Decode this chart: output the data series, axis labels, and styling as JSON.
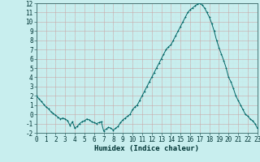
{
  "title": "",
  "xlabel": "Humidex (Indice chaleur)",
  "ylabel": "",
  "xlim": [
    0,
    23
  ],
  "ylim": [
    -2,
    12
  ],
  "xticks": [
    0,
    1,
    2,
    3,
    4,
    5,
    6,
    7,
    8,
    9,
    10,
    11,
    12,
    13,
    14,
    15,
    16,
    17,
    18,
    19,
    20,
    21,
    22,
    23
  ],
  "yticks": [
    -2,
    -1,
    0,
    1,
    2,
    3,
    4,
    5,
    6,
    7,
    8,
    9,
    10,
    11,
    12
  ],
  "bg_color": "#c8eeee",
  "grid_color_major": "#b0d8d8",
  "grid_color_minor": "#c0e8e8",
  "line_color": "#006666",
  "marker_color": "#006666",
  "x": [
    0,
    0.25,
    0.5,
    0.75,
    1.0,
    1.25,
    1.5,
    1.75,
    2.0,
    2.25,
    2.5,
    2.75,
    3.0,
    3.25,
    3.5,
    3.75,
    4.0,
    4.25,
    4.5,
    4.75,
    5.0,
    5.25,
    5.5,
    5.75,
    6.0,
    6.25,
    6.5,
    6.75,
    7.0,
    7.25,
    7.5,
    7.75,
    8.0,
    8.25,
    8.5,
    8.75,
    9.0,
    9.25,
    9.5,
    9.75,
    10.0,
    10.25,
    10.5,
    10.75,
    11.0,
    11.25,
    11.5,
    11.75,
    12.0,
    12.25,
    12.5,
    12.75,
    13.0,
    13.25,
    13.5,
    13.75,
    14.0,
    14.25,
    14.5,
    14.75,
    15.0,
    15.25,
    15.5,
    15.75,
    16.0,
    16.25,
    16.5,
    16.75,
    17.0,
    17.25,
    17.5,
    17.75,
    18.0,
    18.25,
    18.5,
    18.75,
    19.0,
    19.25,
    19.5,
    19.75,
    20.0,
    20.25,
    20.5,
    20.75,
    21.0,
    21.25,
    21.5,
    21.75,
    22.0,
    22.25,
    22.5,
    22.75,
    23.0
  ],
  "y": [
    2.0,
    1.7,
    1.4,
    1.1,
    0.8,
    0.6,
    0.3,
    0.1,
    -0.1,
    -0.3,
    -0.5,
    -0.4,
    -0.5,
    -0.7,
    -1.2,
    -0.8,
    -1.5,
    -1.3,
    -1.0,
    -0.8,
    -0.7,
    -0.5,
    -0.6,
    -0.8,
    -0.9,
    -1.0,
    -0.9,
    -0.8,
    -1.8,
    -1.6,
    -1.4,
    -1.5,
    -1.7,
    -1.5,
    -1.3,
    -0.9,
    -0.6,
    -0.4,
    -0.2,
    0.0,
    0.5,
    0.8,
    1.0,
    1.5,
    2.0,
    2.5,
    3.0,
    3.5,
    4.0,
    4.5,
    5.0,
    5.5,
    6.0,
    6.5,
    7.0,
    7.3,
    7.5,
    8.0,
    8.5,
    9.0,
    9.5,
    10.0,
    10.5,
    11.0,
    11.3,
    11.5,
    11.7,
    11.9,
    12.0,
    11.8,
    11.5,
    11.0,
    10.5,
    9.8,
    9.0,
    8.0,
    7.2,
    6.5,
    5.8,
    5.0,
    4.0,
    3.5,
    2.8,
    2.0,
    1.5,
    1.0,
    0.5,
    0.0,
    -0.2,
    -0.5,
    -0.7,
    -1.0,
    -1.5
  ],
  "label_fontsize": 5.5,
  "xlabel_fontsize": 6.5
}
